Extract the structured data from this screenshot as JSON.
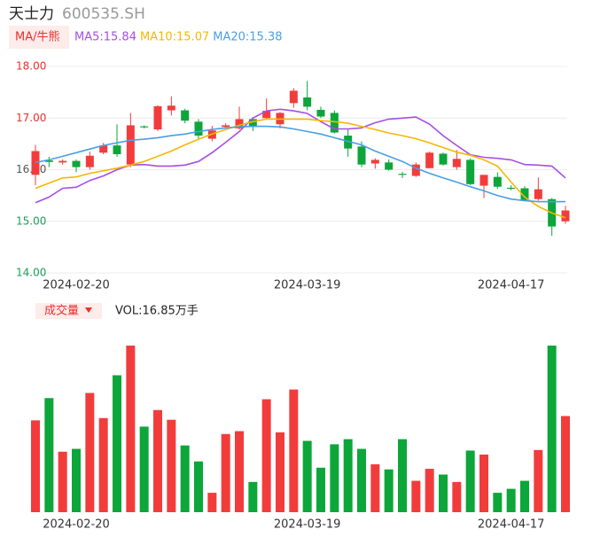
{
  "chart_data": {
    "type": "candlestick",
    "title": "天士力",
    "code": "600535.SH",
    "indicator_button": "MA/牛熊",
    "categories": [
      null,
      null,
      null,
      "2024-02-20",
      null,
      null,
      null,
      null,
      null,
      null,
      null,
      null,
      null,
      null,
      null,
      null,
      null,
      null,
      null,
      null,
      "2024-03-19",
      null,
      null,
      null,
      null,
      null,
      null,
      null,
      null,
      null,
      null,
      null,
      null,
      null,
      null,
      "2024-04-17",
      null,
      null,
      null,
      null
    ],
    "open": [
      15.9,
      16.18,
      16.14,
      16.17,
      16.05,
      16.33,
      16.47,
      16.1,
      16.84,
      16.78,
      17.15,
      17.15,
      16.93,
      16.6,
      16.83,
      16.8,
      16.98,
      17.0,
      16.88,
      17.29,
      17.4,
      17.16,
      17.1,
      16.66,
      16.45,
      16.12,
      16.14,
      15.92,
      15.88,
      16.03,
      16.31,
      16.05,
      16.19,
      15.69,
      15.86,
      15.65,
      15.64,
      15.43,
      15.43,
      15.0
    ],
    "high": [
      16.48,
      16.25,
      16.2,
      16.2,
      16.35,
      16.52,
      16.88,
      17.1,
      16.86,
      17.25,
      17.42,
      17.18,
      16.98,
      16.85,
      16.9,
      17.22,
      17.02,
      17.38,
      17.12,
      17.58,
      17.72,
      17.22,
      17.15,
      16.78,
      16.55,
      16.22,
      16.2,
      15.96,
      16.14,
      16.35,
      16.33,
      16.38,
      16.22,
      15.9,
      15.95,
      15.7,
      15.68,
      15.85,
      15.45,
      15.3
    ],
    "low": [
      15.7,
      16.05,
      16.1,
      15.95,
      16.0,
      16.3,
      16.25,
      16.05,
      16.8,
      16.75,
      17.05,
      16.9,
      16.6,
      16.55,
      16.8,
      16.78,
      16.75,
      16.98,
      16.8,
      17.2,
      17.15,
      17.0,
      16.7,
      16.25,
      16.05,
      16.02,
      15.98,
      15.84,
      15.86,
      16.03,
      16.08,
      16.0,
      15.7,
      15.45,
      15.63,
      15.6,
      15.4,
      15.4,
      14.72,
      14.95
    ],
    "close": [
      16.36,
      16.15,
      16.17,
      16.05,
      16.27,
      16.47,
      16.3,
      16.86,
      16.82,
      17.23,
      17.24,
      16.95,
      16.66,
      16.76,
      16.86,
      16.98,
      16.83,
      17.14,
      17.1,
      17.53,
      17.22,
      17.03,
      16.72,
      16.41,
      16.1,
      16.19,
      16.0,
      15.9,
      16.1,
      16.33,
      16.1,
      16.21,
      15.72,
      15.9,
      15.67,
      15.63,
      15.41,
      15.62,
      14.9,
      15.21
    ],
    "up_color": "#f23c3c",
    "down_color": "#0ca63a",
    "series": [
      {
        "name": "MA5:15.84",
        "color": "#a64ee6",
        "values": [
          15.36,
          15.47,
          15.64,
          15.66,
          15.79,
          15.88,
          16.0,
          16.09,
          16.1,
          16.07,
          16.07,
          16.09,
          16.16,
          16.33,
          16.53,
          16.74,
          17.0,
          17.14,
          17.17,
          17.14,
          17.09,
          16.93,
          16.79,
          16.79,
          16.81,
          16.91,
          16.98,
          17.0,
          17.02,
          16.88,
          16.66,
          16.47,
          16.29,
          16.24,
          16.22,
          16.19,
          16.1,
          16.09,
          16.07,
          15.84
        ]
      },
      {
        "name": "MA10:15.07",
        "color": "#f5b800",
        "values": [
          15.64,
          15.74,
          15.84,
          15.86,
          15.93,
          15.98,
          16.03,
          16.09,
          16.16,
          16.26,
          16.36,
          16.48,
          16.59,
          16.69,
          16.78,
          16.86,
          16.93,
          16.98,
          16.98,
          16.98,
          16.98,
          16.95,
          16.93,
          16.9,
          16.84,
          16.78,
          16.71,
          16.66,
          16.6,
          16.52,
          16.43,
          16.34,
          16.28,
          16.19,
          16.07,
          15.76,
          15.47,
          15.29,
          15.16,
          15.07
        ]
      },
      {
        "name": "MA20:15.38",
        "color": "#4a9ee6",
        "values": [
          16.14,
          16.19,
          16.26,
          16.33,
          16.4,
          16.47,
          16.52,
          16.57,
          16.59,
          16.62,
          16.66,
          16.69,
          16.74,
          16.78,
          16.81,
          16.83,
          16.84,
          16.84,
          16.83,
          16.79,
          16.74,
          16.69,
          16.62,
          16.55,
          16.48,
          16.36,
          16.26,
          16.16,
          16.03,
          15.93,
          15.84,
          15.76,
          15.67,
          15.59,
          15.5,
          15.43,
          15.4,
          15.38,
          15.38,
          15.38
        ]
      }
    ],
    "ylim": [
      14,
      18
    ],
    "yticks": [
      {
        "value": 14,
        "label": "14.00",
        "color": "#1a9e5a"
      },
      {
        "value": 15,
        "label": "15.00",
        "color": "#1a9e5a"
      },
      {
        "value": 16,
        "label": "16.00",
        "color": "#555555"
      },
      {
        "value": 17,
        "label": "17.00",
        "color": "#e83030"
      },
      {
        "value": 18,
        "label": "18.00",
        "color": "#e83030"
      }
    ],
    "grid": true,
    "volume_button": "成交量",
    "volume_label": "VOL:16.85万手",
    "volume": [
      16.1,
      20.0,
      10.6,
      11.1,
      20.9,
      16.5,
      24.0,
      29.2,
      15.0,
      17.9,
      16.2,
      11.7,
      8.9,
      3.4,
      13.7,
      14.2,
      5.3,
      19.8,
      14.0,
      21.5,
      12.5,
      7.8,
      11.9,
      12.8,
      11.1,
      8.4,
      7.5,
      12.8,
      5.5,
      7.6,
      6.6,
      5.3,
      10.8,
      10.1,
      3.4,
      4.1,
      5.5,
      10.9,
      29.2,
      16.85
    ]
  }
}
